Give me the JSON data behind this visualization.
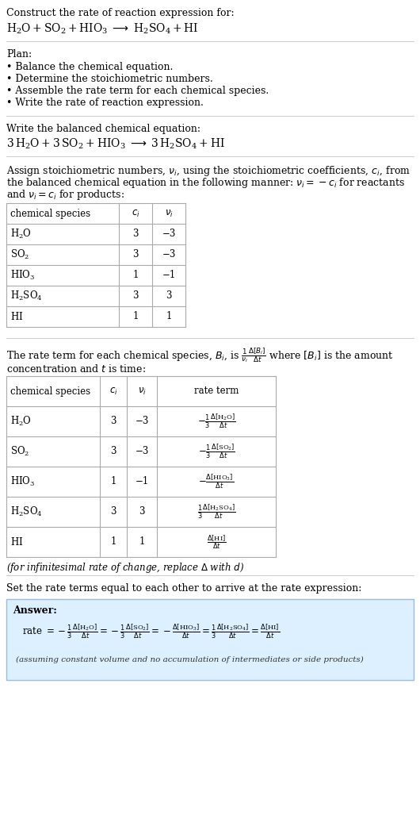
{
  "title_line1": "Construct the rate of reaction expression for:",
  "plan_header": "Plan:",
  "plan_items": [
    "• Balance the chemical equation.",
    "• Determine the stoichiometric numbers.",
    "• Assemble the rate term for each chemical species.",
    "• Write the rate of reaction expression."
  ],
  "balanced_header": "Write the balanced chemical equation:",
  "table1_rows": [
    [
      "H_2O",
      "3",
      "−3"
    ],
    [
      "SO_2",
      "3",
      "−3"
    ],
    [
      "HIO_3",
      "1",
      "−1"
    ],
    [
      "H_2SO_4",
      "3",
      "3"
    ],
    [
      "HI",
      "1",
      "1"
    ]
  ],
  "table2_rows": [
    [
      "H_2O",
      "3",
      "−3"
    ],
    [
      "SO_2",
      "3",
      "−3"
    ],
    [
      "HIO_3",
      "1",
      "−1"
    ],
    [
      "H_2SO_4",
      "3",
      "3"
    ],
    [
      "HI",
      "1",
      "1"
    ]
  ],
  "infinitesimal_note": "(for infinitesimal rate of change, replace Δ with d)",
  "set_equal_text": "Set the rate terms equal to each other to arrive at the rate expression:",
  "answer_box_color": "#ddf0ff",
  "answer_note": "(assuming constant volume and no accumulation of intermediates or side products)",
  "bg_color": "#ffffff",
  "text_color": "#000000",
  "table_border_color": "#aaaaaa",
  "line_color": "#cccccc"
}
